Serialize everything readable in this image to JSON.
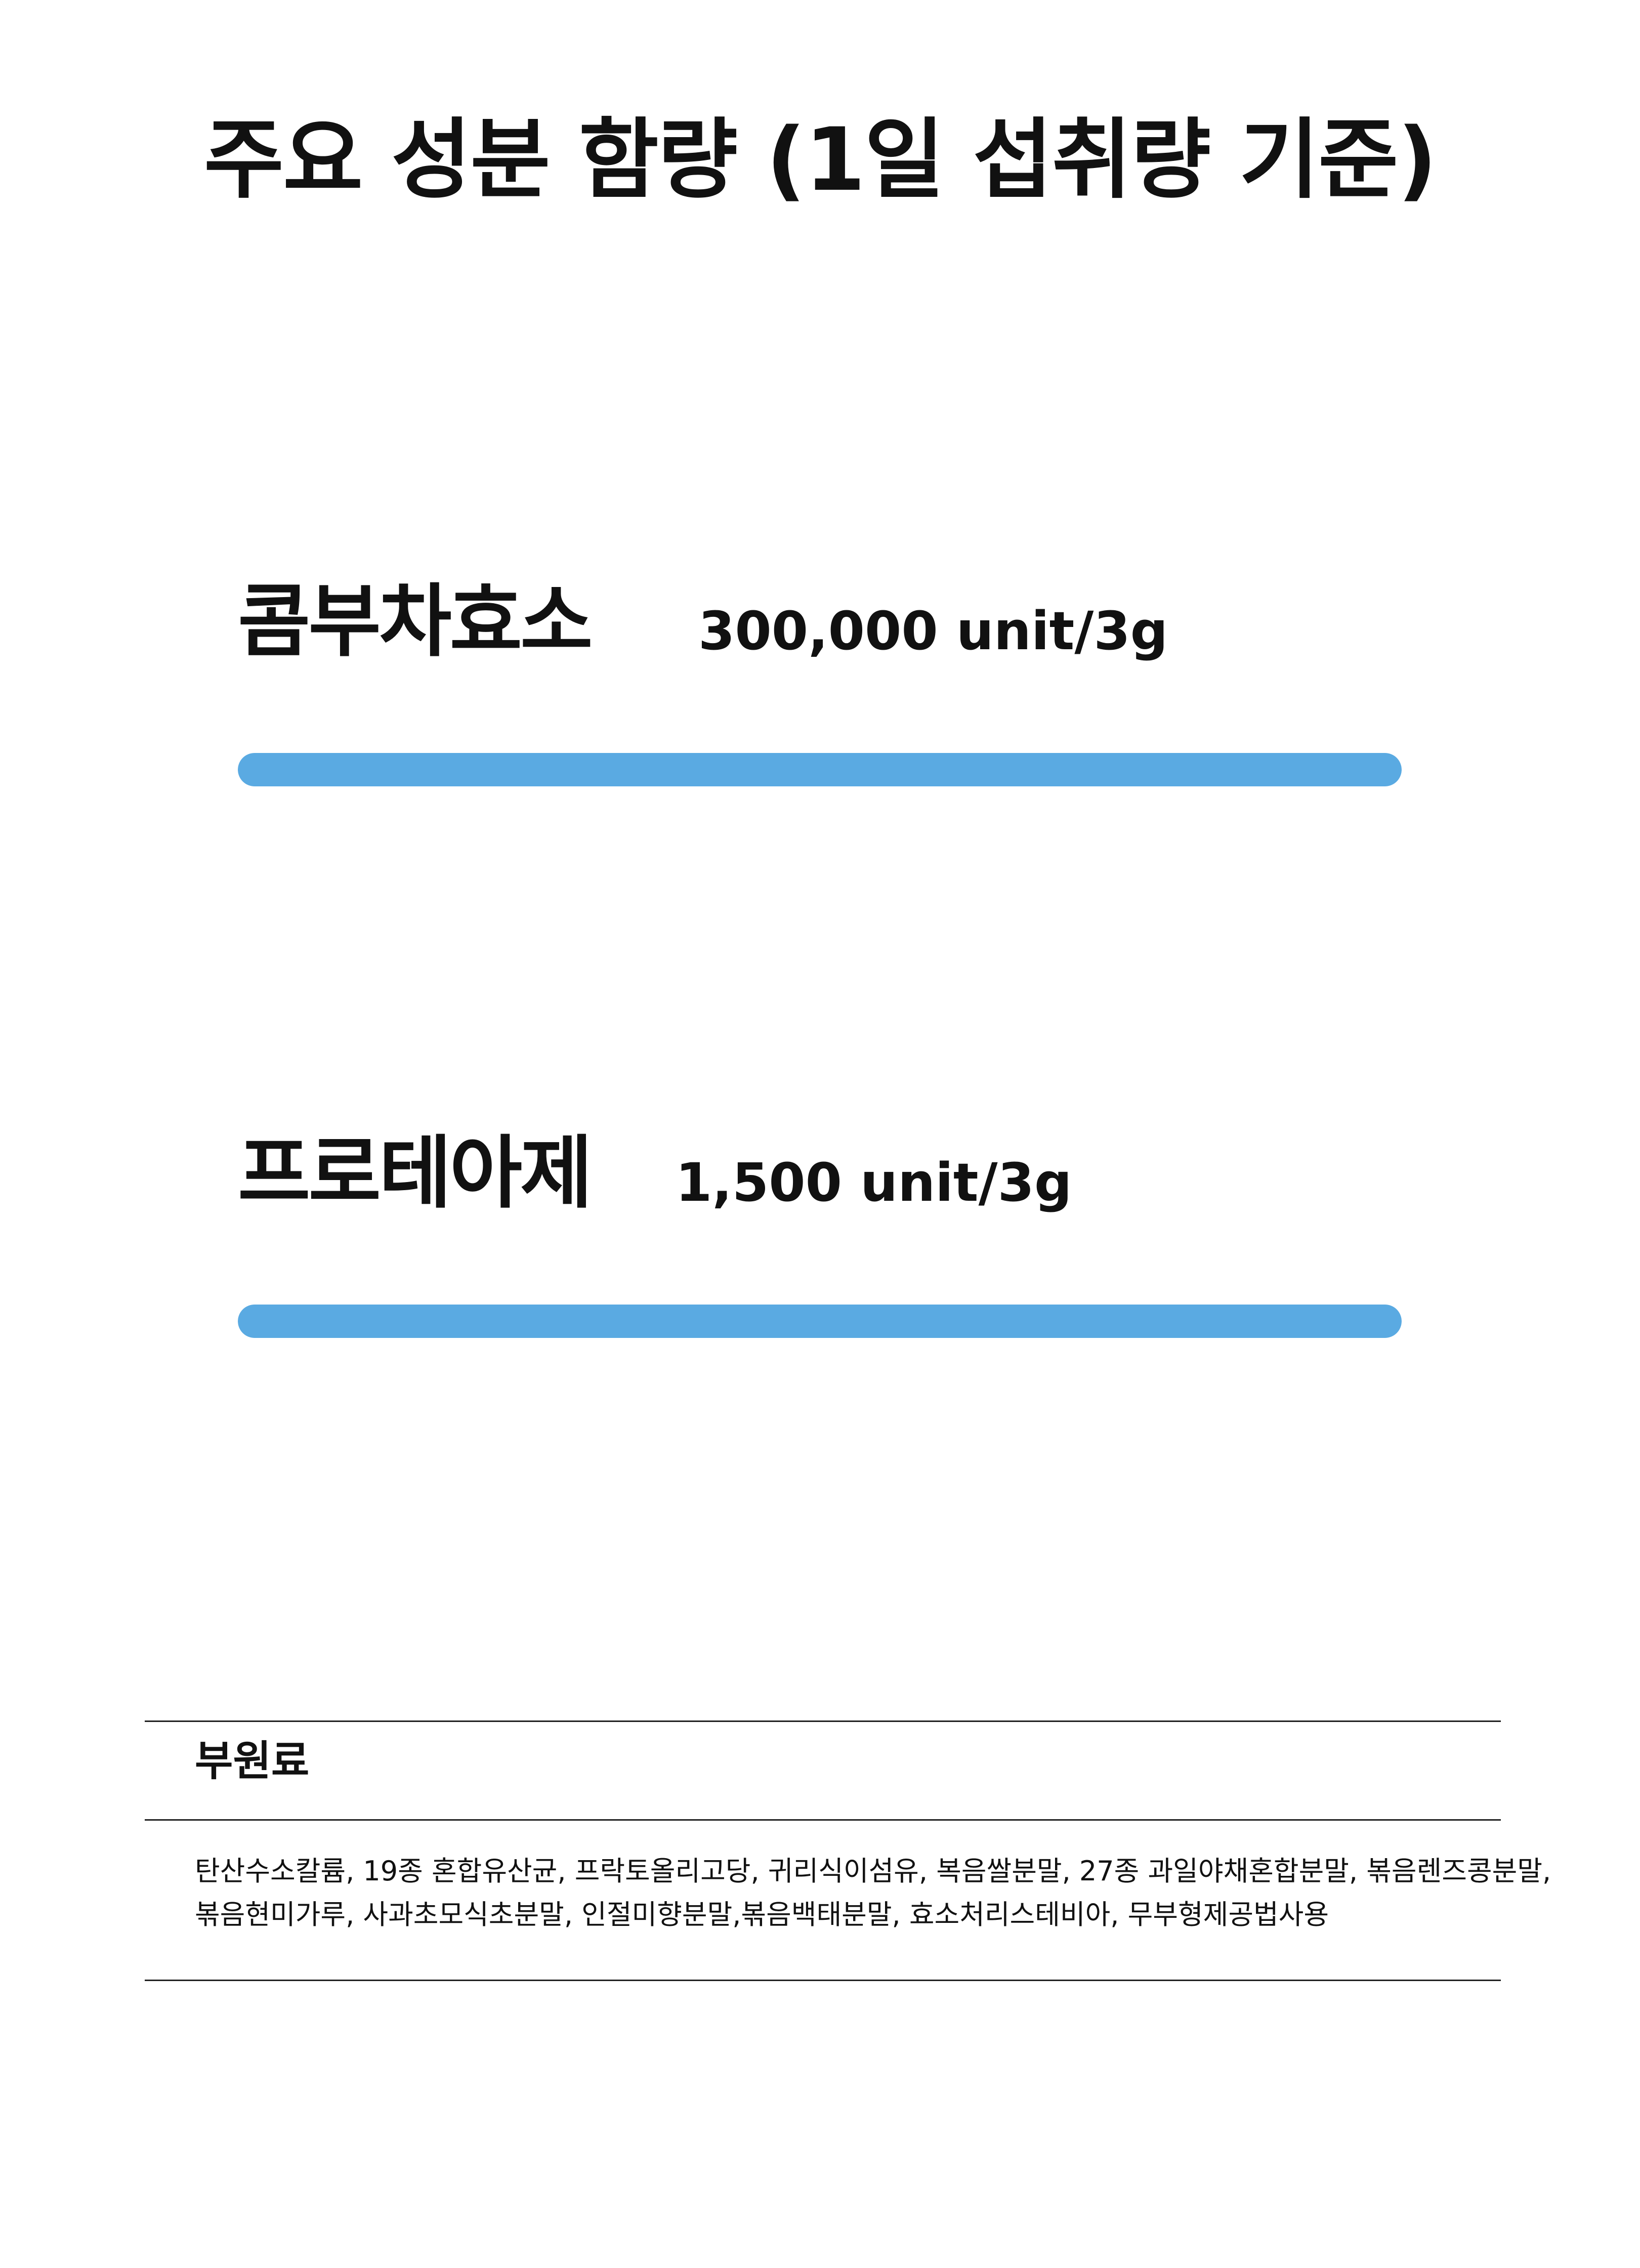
{
  "title": "주요 성분 함량 (1일 섭취량 기준)",
  "ingredients": [
    {
      "name": "콤부차효소",
      "amount": "300,000 unit/3g",
      "fill_fraction": 1.0
    },
    {
      "name": "프로테아제",
      "amount": "1,500 unit/3g",
      "fill_fraction": 1.0
    }
  ],
  "colors": {
    "bar": "#5aaae2",
    "text": "#111111",
    "rule": "#222222"
  },
  "sub_ingredients": {
    "heading": "부원료",
    "lines": [
      "탄산수소칼륨, 19종 혼합유산균, 프락토올리고당, 귀리식이섬유, 복음쌀분말, 27종 과일야채혼합분말, 볶음렌즈콩분말,",
      "볶음현미가루, 사과초모식초분말, 인절미향분말,볶음백태분말, 효소처리스테비아, 무부형제공법사용"
    ]
  }
}
